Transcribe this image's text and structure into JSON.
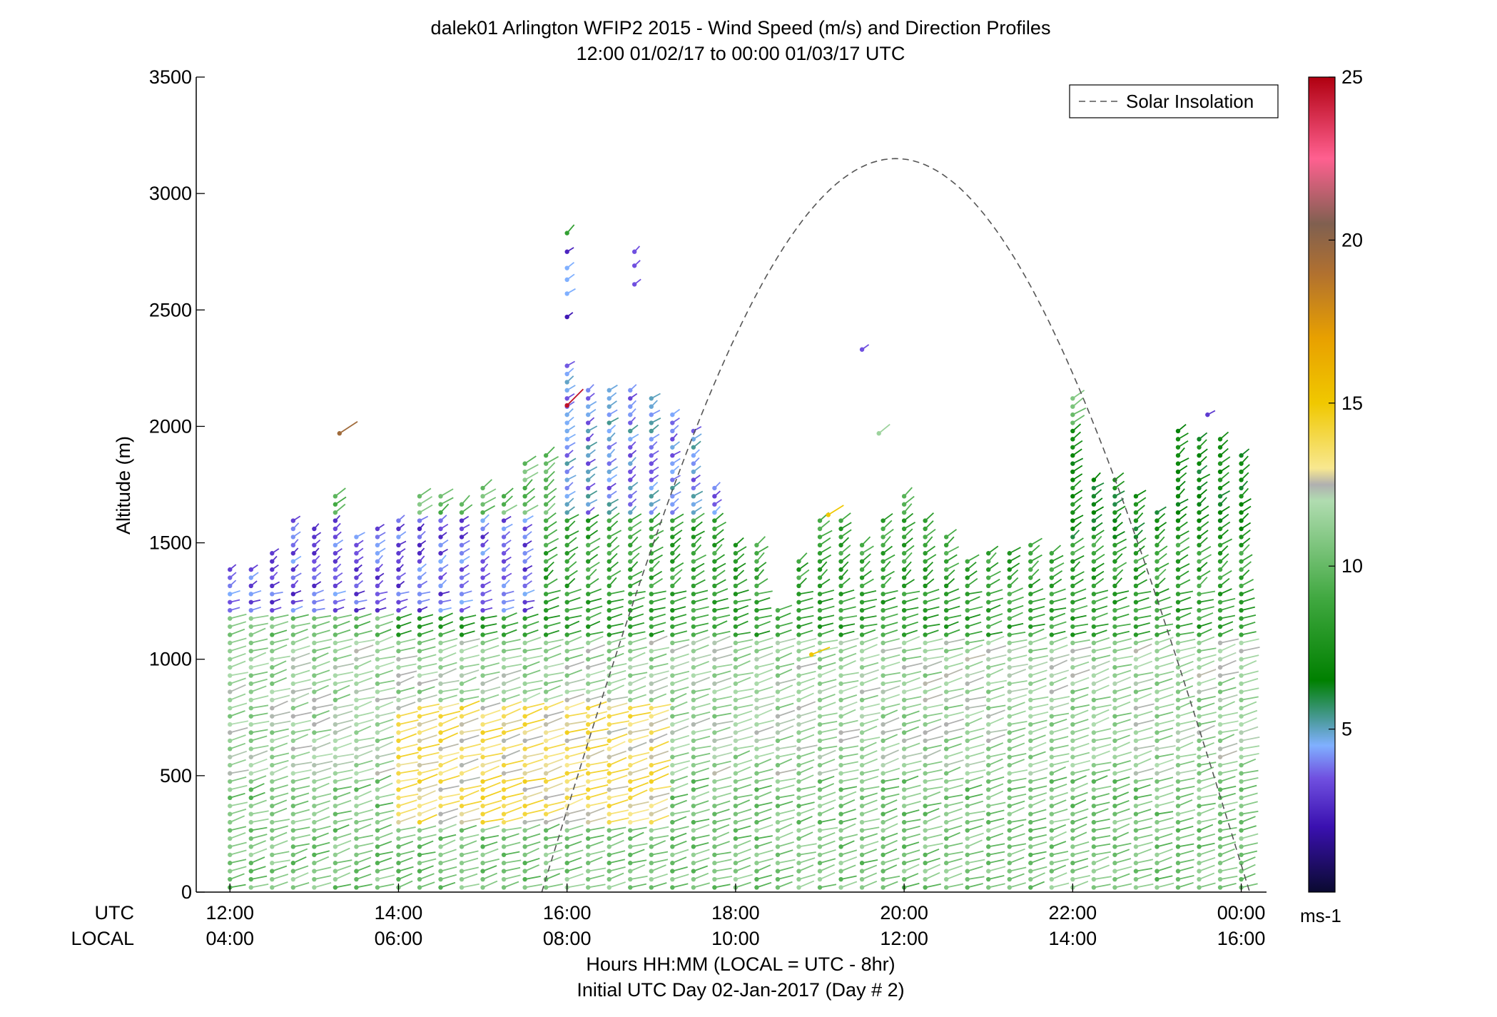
{
  "chart_data": {
    "type": "wind-barb-profile",
    "title": "dalek01 Arlington WFIP2 2015 - Wind Speed (m/s) and Direction Profiles",
    "subtitle": "12:00 01/02/17 to 00:00 01/03/17  UTC",
    "ylabel": "Altitude (m)",
    "xlabel": "Hours HH:MM  (LOCAL = UTC - 8hr)",
    "xlabel2": "Initial UTC Day 02-Jan-2017 (Day # 2)",
    "utc_row_label": "UTC",
    "local_row_label": "LOCAL",
    "ylim": [
      0,
      3500
    ],
    "yticks": [
      0,
      500,
      1000,
      1500,
      2000,
      2500,
      3000,
      3500
    ],
    "xlim_hours_utc": [
      11.6,
      24.3
    ],
    "xticks": [
      {
        "utc": "12:00",
        "local": "04:00",
        "hour": 12
      },
      {
        "utc": "14:00",
        "local": "06:00",
        "hour": 14
      },
      {
        "utc": "16:00",
        "local": "08:00",
        "hour": 16
      },
      {
        "utc": "18:00",
        "local": "10:00",
        "hour": 18
      },
      {
        "utc": "20:00",
        "local": "12:00",
        "hour": 20
      },
      {
        "utc": "22:00",
        "local": "14:00",
        "hour": 22
      },
      {
        "utc": "00:00",
        "local": "16:00",
        "hour": 24
      }
    ],
    "legend": {
      "entry": "Solar Insolation",
      "style": "dashed",
      "color": "#555555",
      "placement": "top-right"
    },
    "solar_insolation": {
      "start_hour": 15.7,
      "peak_hour": 19.9,
      "end_hour": 24.1,
      "peak_altitude_equiv": 3150
    },
    "colorbar": {
      "label": "ms-1",
      "ticks": [
        5,
        10,
        15,
        20,
        25
      ],
      "range": [
        0,
        25
      ],
      "stops": [
        {
          "v": 0,
          "color": "#0a0a30"
        },
        {
          "v": 2,
          "color": "#3a10b0"
        },
        {
          "v": 3.5,
          "color": "#7050e0"
        },
        {
          "v": 4.5,
          "color": "#80b0ff"
        },
        {
          "v": 5.3,
          "color": "#4a9a9a"
        },
        {
          "v": 6.5,
          "color": "#008000"
        },
        {
          "v": 9,
          "color": "#40a840"
        },
        {
          "v": 12,
          "color": "#b0dcb0"
        },
        {
          "v": 12.5,
          "color": "#b0b0b0"
        },
        {
          "v": 13,
          "color": "#f8e890"
        },
        {
          "v": 15,
          "color": "#f0c800"
        },
        {
          "v": 17,
          "color": "#e8a000"
        },
        {
          "v": 19,
          "color": "#b07030"
        },
        {
          "v": 20.5,
          "color": "#806050"
        },
        {
          "v": 22.5,
          "color": "#ff6090"
        },
        {
          "v": 25,
          "color": "#b00010"
        }
      ]
    },
    "profile_times_hours": [
      12.0,
      12.25,
      12.5,
      12.75,
      13.0,
      13.25,
      13.5,
      13.75,
      14.0,
      14.25,
      14.5,
      14.75,
      15.0,
      15.25,
      15.5,
      15.75,
      16.0,
      16.25,
      16.5,
      16.75,
      17.0,
      17.25,
      17.5,
      17.75,
      18.0,
      18.25,
      18.5,
      18.75,
      19.0,
      19.25,
      19.5,
      19.75,
      20.0,
      20.25,
      20.5,
      20.75,
      21.0,
      21.25,
      21.5,
      21.75,
      22.0,
      22.25,
      22.5,
      22.75,
      23.0,
      23.25,
      23.5,
      23.75,
      24.0
    ],
    "profile_top_altitudes_m": [
      1410,
      1400,
      1480,
      1620,
      1580,
      1700,
      1540,
      1560,
      1620,
      1700,
      1700,
      1690,
      1760,
      1700,
      1840,
      1880,
      2260,
      2180,
      2180,
      2180,
      2130,
      2050,
      2000,
      1750,
      1500,
      1500,
      1210,
      1450,
      1620,
      1620,
      1520,
      1600,
      1700,
      1600,
      1550,
      1440,
      1460,
      1470,
      1490,
      1470,
      2120,
      1780,
      1770,
      1700,
      1630,
      1980,
      1960,
      1950,
      1900
    ],
    "profile_level_spacing_m": 35,
    "speed_regions": [
      {
        "alt_min": 0,
        "alt_max": 500,
        "hour_min": 12,
        "hour_max": 24,
        "speed": 10.5
      },
      {
        "alt_min": 500,
        "alt_max": 1100,
        "hour_min": 12,
        "hour_max": 24,
        "speed": 11.5
      },
      {
        "alt_min": 300,
        "alt_max": 800,
        "hour_min": 14,
        "hour_max": 17,
        "speed": 13.5
      },
      {
        "alt_min": 1100,
        "alt_max": 1600,
        "hour_min": 14,
        "hour_max": 24,
        "speed": 8.5
      },
      {
        "alt_min": 1200,
        "alt_max": 1600,
        "hour_min": 12,
        "hour_max": 15.5,
        "speed": 3.5
      },
      {
        "alt_min": 1600,
        "alt_max": 2300,
        "hour_min": 15.8,
        "hour_max": 17.8,
        "speed": 4.3
      },
      {
        "alt_min": 1500,
        "alt_max": 2000,
        "hour_min": 22,
        "hour_max": 24,
        "speed": 7
      }
    ],
    "isolated_observations": [
      {
        "hour": 13.3,
        "alt": 1970,
        "speed": 19.5
      },
      {
        "hour": 16.0,
        "alt": 2830,
        "speed": 8.5
      },
      {
        "hour": 16.0,
        "alt": 2750,
        "speed": 2.5
      },
      {
        "hour": 16.0,
        "alt": 2680,
        "speed": 4.5
      },
      {
        "hour": 16.0,
        "alt": 2630,
        "speed": 4.5
      },
      {
        "hour": 16.0,
        "alt": 2570,
        "speed": 4.5
      },
      {
        "hour": 16.0,
        "alt": 2470,
        "speed": 2.2
      },
      {
        "hour": 16.0,
        "alt": 2090,
        "speed": 24.5
      },
      {
        "hour": 16.8,
        "alt": 2750,
        "speed": 3.5
      },
      {
        "hour": 16.8,
        "alt": 2690,
        "speed": 3.5
      },
      {
        "hour": 16.8,
        "alt": 2610,
        "speed": 3.5
      },
      {
        "hour": 19.5,
        "alt": 2330,
        "speed": 3.5
      },
      {
        "hour": 19.7,
        "alt": 1970,
        "speed": 11.5
      },
      {
        "hour": 19.1,
        "alt": 1620,
        "speed": 15
      },
      {
        "hour": 18.9,
        "alt": 1020,
        "speed": 15
      },
      {
        "hour": 23.6,
        "alt": 2050,
        "speed": 3
      }
    ]
  }
}
